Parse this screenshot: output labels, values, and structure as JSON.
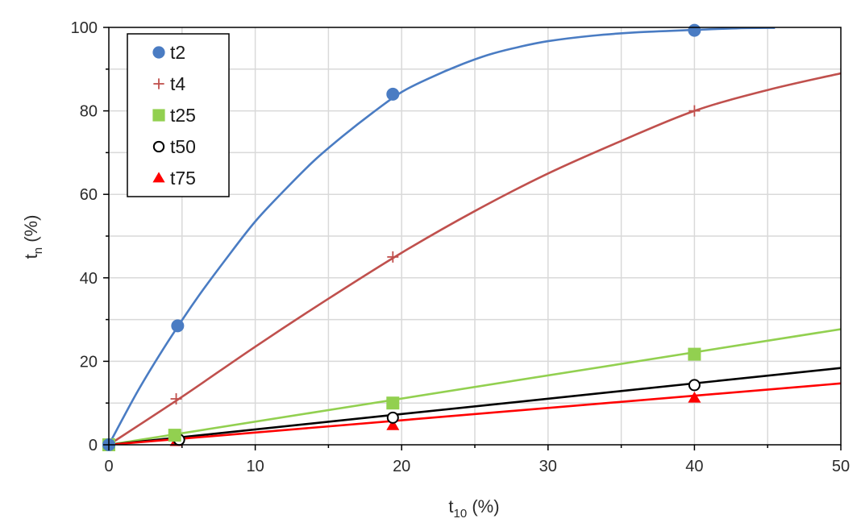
{
  "chart_data": {
    "type": "scatter",
    "xlabel": {
      "main": "t",
      "sub": "10",
      "suffix": " (%)"
    },
    "ylabel": {
      "main": "t",
      "sub": "n",
      "suffix": " (%)"
    },
    "xlim": [
      0,
      50
    ],
    "ylim": [
      0,
      100
    ],
    "x_ticks": [
      0,
      10,
      20,
      30,
      40,
      50
    ],
    "y_ticks": [
      0,
      20,
      40,
      60,
      80,
      100
    ],
    "x_minor_step": 5,
    "y_minor_step": 10,
    "grid": true,
    "legend_position": "top-left",
    "series": [
      {
        "name": "t2",
        "color": "#4a7cc3",
        "marker": "circle",
        "points": [
          [
            0,
            0
          ],
          [
            4.7,
            28.5
          ],
          [
            19.4,
            84
          ],
          [
            40,
            99.3
          ]
        ],
        "fit": [
          [
            0,
            0
          ],
          [
            2,
            13
          ],
          [
            4,
            24.5
          ],
          [
            6,
            35
          ],
          [
            8,
            44.5
          ],
          [
            10,
            53.5
          ],
          [
            12,
            61
          ],
          [
            14,
            68
          ],
          [
            16,
            74
          ],
          [
            18,
            79.5
          ],
          [
            20,
            84.5
          ],
          [
            22,
            88
          ],
          [
            24,
            91
          ],
          [
            26,
            93.5
          ],
          [
            28,
            95.3
          ],
          [
            30,
            96.7
          ],
          [
            33,
            98
          ],
          [
            36,
            98.8
          ],
          [
            40,
            99.4
          ],
          [
            43,
            99.8
          ],
          [
            45.5,
            99.9
          ]
        ]
      },
      {
        "name": "t4",
        "color": "#c0504d",
        "marker": "plus",
        "points": [
          [
            0,
            0
          ],
          [
            4.6,
            11
          ],
          [
            19.4,
            45
          ],
          [
            40,
            80
          ]
        ],
        "fit": [
          [
            0,
            0
          ],
          [
            5,
            11.5
          ],
          [
            10,
            23.5
          ],
          [
            15,
            35
          ],
          [
            20,
            46
          ],
          [
            25,
            56
          ],
          [
            30,
            65
          ],
          [
            35,
            72.8
          ],
          [
            40,
            80
          ],
          [
            45,
            85
          ],
          [
            50,
            89
          ]
        ]
      },
      {
        "name": "t25",
        "color": "#92d050",
        "marker": "square",
        "points": [
          [
            0,
            0
          ],
          [
            4.5,
            2.3
          ],
          [
            19.4,
            10
          ],
          [
            40,
            21.7
          ]
        ],
        "fit": [
          [
            0,
            0
          ],
          [
            50,
            27.7
          ]
        ]
      },
      {
        "name": "t50",
        "color": "#000000",
        "marker": "circle-open",
        "points": [
          [
            0,
            0
          ],
          [
            4.8,
            1.2
          ],
          [
            19.4,
            6.5
          ],
          [
            40,
            14.3
          ]
        ],
        "fit": [
          [
            0,
            0
          ],
          [
            50,
            18.4
          ]
        ]
      },
      {
        "name": "t75",
        "color": "#ff0000",
        "marker": "triangle",
        "points": [
          [
            0,
            0
          ],
          [
            4.6,
            0.8
          ],
          [
            19.4,
            4.6
          ],
          [
            40,
            11.2
          ]
        ],
        "fit": [
          [
            0,
            0
          ],
          [
            50,
            14.7
          ]
        ]
      }
    ]
  }
}
